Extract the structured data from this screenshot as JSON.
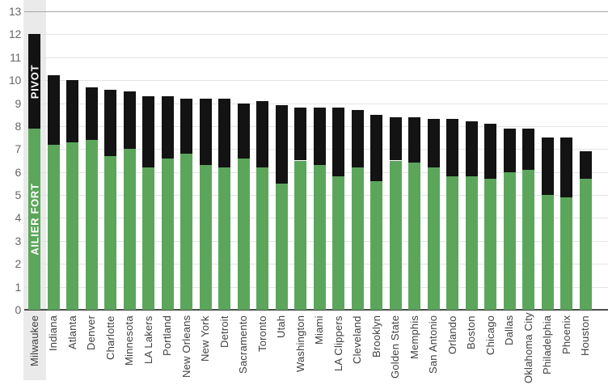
{
  "chart_data": {
    "type": "bar",
    "stacked": true,
    "title": "",
    "xlabel": "",
    "ylabel": "",
    "grid": true,
    "legend_position": "none",
    "ylim": [
      0,
      13
    ],
    "yticks": [
      0,
      1,
      2,
      3,
      4,
      5,
      6,
      7,
      8,
      9,
      10,
      11,
      12,
      13
    ],
    "categories": [
      "Milwaukee",
      "Indiana",
      "Atlanta",
      "Denver",
      "Charlotte",
      "Minnesota",
      "LA Lakers",
      "Portland",
      "New Orleans",
      "New York",
      "Detroit",
      "Sacramento",
      "Toronto",
      "Utah",
      "Washington",
      "Miami",
      "LA Clippers",
      "Cleveland",
      "Brooklyn",
      "Golden State",
      "Memphis",
      "San Antonio",
      "Orlando",
      "Boston",
      "Chicago",
      "Dallas",
      "Oklahoma City",
      "Philadelphia",
      "Phoenix",
      "Houston"
    ],
    "series": [
      {
        "name": "AILIER FORT",
        "color": "#5ca65c",
        "values": [
          7.9,
          7.2,
          7.3,
          7.4,
          6.7,
          7.0,
          6.2,
          6.6,
          6.8,
          6.3,
          6.2,
          6.6,
          6.2,
          5.5,
          6.5,
          6.3,
          5.8,
          6.2,
          5.6,
          6.5,
          6.4,
          6.2,
          5.8,
          5.8,
          5.7,
          6.0,
          6.1,
          5.0,
          4.9,
          5.7
        ]
      },
      {
        "name": "PIVOT",
        "color": "#131313",
        "values": [
          4.1,
          3.0,
          2.7,
          2.3,
          2.9,
          2.5,
          3.1,
          2.7,
          2.4,
          2.9,
          3.0,
          2.4,
          2.9,
          3.4,
          2.3,
          2.5,
          3.0,
          2.5,
          2.9,
          1.9,
          2.0,
          2.1,
          2.5,
          2.4,
          2.4,
          1.9,
          1.8,
          2.5,
          2.6,
          1.2
        ]
      }
    ],
    "totals": [
      12.0,
      10.2,
      10.0,
      9.7,
      9.6,
      9.5,
      9.3,
      9.3,
      9.2,
      9.2,
      9.2,
      9.0,
      9.1,
      8.9,
      8.8,
      8.8,
      8.8,
      8.7,
      8.5,
      8.4,
      8.4,
      8.3,
      8.3,
      8.2,
      8.1,
      7.9,
      7.9,
      7.5,
      7.5,
      6.9
    ],
    "highlighted_category": "Milwaukee",
    "annotations": [
      {
        "category": "Milwaukee",
        "segment": "PIVOT",
        "label": "PIVOT"
      },
      {
        "category": "Milwaukee",
        "segment": "AILIER FORT",
        "label": "AILIER FORT"
      }
    ],
    "colors": {
      "green_segment": "#5ca65c",
      "black_segment": "#131313",
      "highlight_band": "#eaeaea",
      "gridline": "#e4e4e4",
      "top_gridline": "#a6a6a6",
      "zero_line": "#4d4d4d",
      "axis_label_text": "#3f3f3f",
      "tick_label_text": "#666666"
    }
  }
}
